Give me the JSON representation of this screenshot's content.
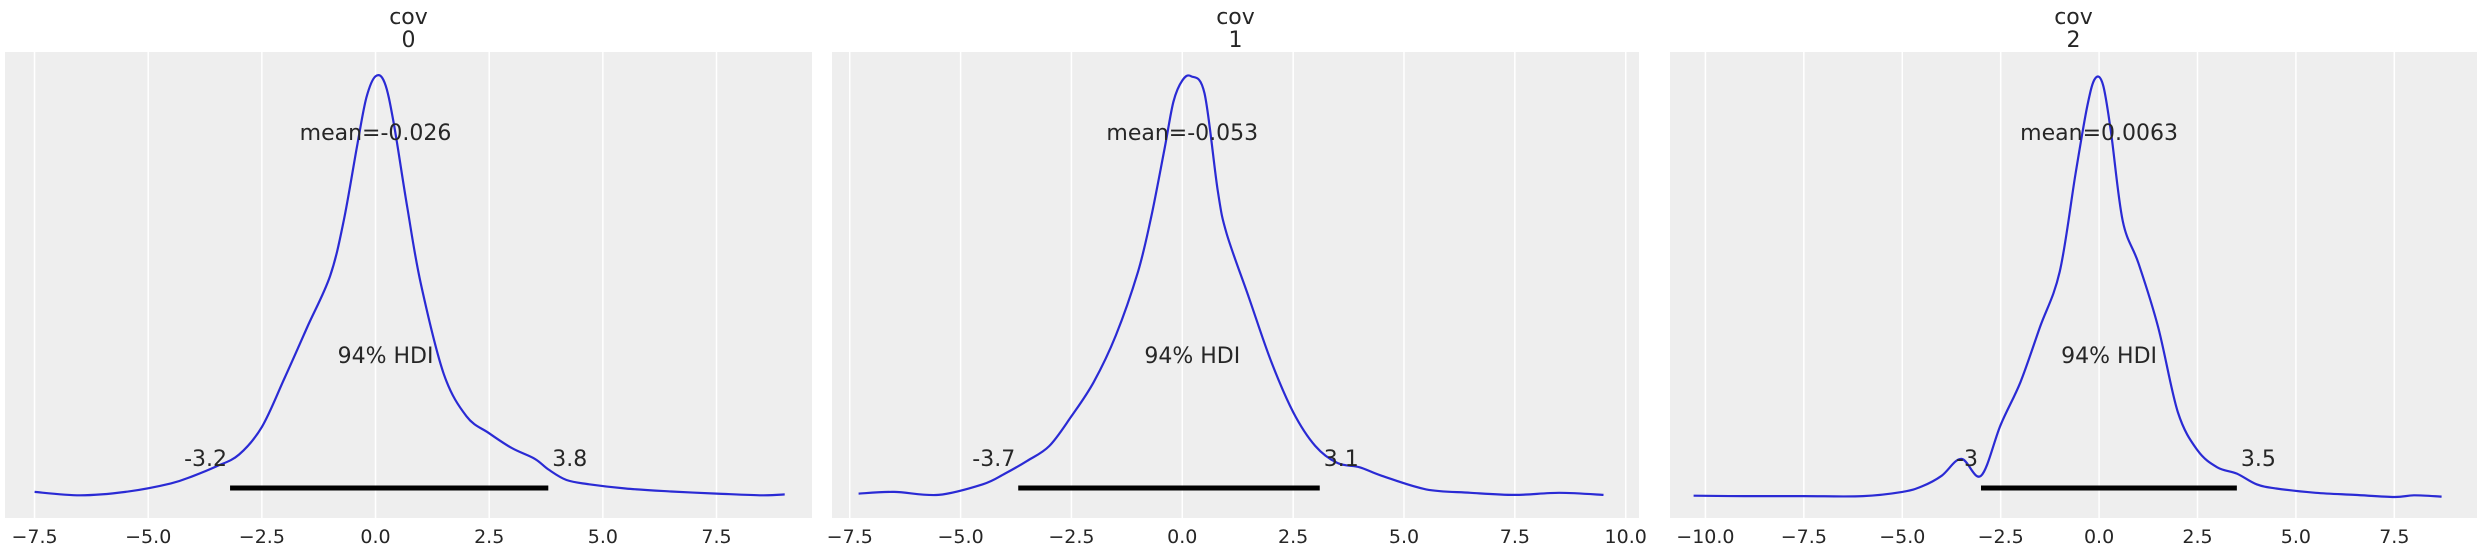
{
  "figure": {
    "background": "#ffffff",
    "panel_background": "#eeeeee",
    "grid_color": "#ffffff",
    "line_color": "#2a2ad4",
    "hdi_color": "#000000"
  },
  "chart_data": [
    {
      "type": "line",
      "title": "cov\n0",
      "title_lines": [
        "cov",
        "0"
      ],
      "xlabel": "",
      "ylabel": "",
      "xlim": [
        -8.15,
        9.6
      ],
      "xticks": [
        -7.5,
        -5.0,
        -2.5,
        0.0,
        2.5,
        5.0,
        7.5
      ],
      "xtick_labels": [
        "−7.5",
        "−5.0",
        "−2.5",
        "0.0",
        "2.5",
        "5.0",
        "7.5"
      ],
      "grid": true,
      "yticks_visible": false,
      "mean_label": "mean=-0.026",
      "hdi_label": "94% HDI",
      "hdi": [
        -3.2,
        3.8
      ],
      "hdi_labels": [
        "-3.2",
        "3.8"
      ],
      "series": [
        {
          "x": [
            -7.5,
            -6.5,
            -5.5,
            -4.5,
            -4.0,
            -3.5,
            -3.0,
            -2.5,
            -2.0,
            -1.5,
            -1.0,
            -0.7,
            -0.4,
            -0.2,
            0.0,
            0.2,
            0.4,
            0.7,
            1.0,
            1.5,
            2.0,
            2.5,
            3.0,
            3.5,
            3.8,
            4.2,
            4.7,
            5.5,
            6.5,
            7.5,
            8.5,
            9.0
          ],
          "y": [
            0.012,
            0.004,
            0.012,
            0.032,
            0.05,
            0.072,
            0.1,
            0.165,
            0.28,
            0.4,
            0.52,
            0.65,
            0.83,
            0.94,
            0.99,
            0.975,
            0.88,
            0.68,
            0.5,
            0.29,
            0.19,
            0.15,
            0.115,
            0.09,
            0.065,
            0.04,
            0.03,
            0.02,
            0.013,
            0.008,
            0.004,
            0.006
          ]
        }
      ]
    },
    {
      "type": "line",
      "title": "cov\n1",
      "title_lines": [
        "cov",
        "1"
      ],
      "xlabel": "",
      "ylabel": "",
      "xlim": [
        -7.9,
        10.3
      ],
      "xticks": [
        -7.5,
        -5.0,
        -2.5,
        0.0,
        2.5,
        5.0,
        7.5,
        10.0
      ],
      "xtick_labels": [
        "−7.5",
        "−5.0",
        "−2.5",
        "0.0",
        "2.5",
        "5.0",
        "7.5",
        "10.0"
      ],
      "grid": true,
      "yticks_visible": false,
      "mean_label": "mean=-0.053",
      "hdi_label": "94% HDI",
      "hdi": [
        -3.7,
        3.1
      ],
      "hdi_labels": [
        "-3.7",
        "3.1"
      ],
      "series": [
        {
          "x": [
            -7.3,
            -6.5,
            -5.5,
            -4.5,
            -4.0,
            -3.5,
            -3.0,
            -2.5,
            -2.0,
            -1.5,
            -1.0,
            -0.7,
            -0.4,
            -0.2,
            0.0,
            0.2,
            0.5,
            0.8,
            1.0,
            1.5,
            2.0,
            2.5,
            3.0,
            3.5,
            4.0,
            4.5,
            5.5,
            6.5,
            7.5,
            8.5,
            9.5
          ],
          "y": [
            0.008,
            0.012,
            0.005,
            0.03,
            0.055,
            0.085,
            0.12,
            0.19,
            0.27,
            0.38,
            0.53,
            0.66,
            0.82,
            0.93,
            0.98,
            0.99,
            0.95,
            0.72,
            0.62,
            0.47,
            0.32,
            0.2,
            0.12,
            0.08,
            0.07,
            0.05,
            0.018,
            0.01,
            0.005,
            0.01,
            0.005
          ]
        }
      ]
    },
    {
      "type": "line",
      "title": "cov\n2",
      "title_lines": [
        "cov",
        "2"
      ],
      "xlabel": "",
      "ylabel": "",
      "xlim": [
        -10.9,
        9.6
      ],
      "xticks": [
        -10.0,
        -7.5,
        -5.0,
        -2.5,
        0.0,
        2.5,
        5.0,
        7.5
      ],
      "xtick_labels": [
        "−10.0",
        "−7.5",
        "−5.0",
        "−2.5",
        "0.0",
        "2.5",
        "5.0",
        "7.5"
      ],
      "grid": true,
      "yticks_visible": false,
      "mean_label": "mean=0.0063",
      "hdi_label": "94% HDI",
      "hdi": [
        -3.0,
        3.5
      ],
      "hdi_labels": [
        "-3",
        "3.5"
      ],
      "series": [
        {
          "x": [
            -10.3,
            -9.0,
            -7.5,
            -6.0,
            -5.0,
            -4.5,
            -4.0,
            -3.5,
            -3.0,
            -2.5,
            -2.0,
            -1.5,
            -1.0,
            -0.6,
            -0.3,
            -0.1,
            0.1,
            0.3,
            0.6,
            1.0,
            1.5,
            2.0,
            2.5,
            3.0,
            3.5,
            4.0,
            4.5,
            5.5,
            6.5,
            7.5,
            8.0,
            8.7
          ],
          "y": [
            0.003,
            0.002,
            0.002,
            0.002,
            0.012,
            0.025,
            0.05,
            0.09,
            0.05,
            0.17,
            0.27,
            0.4,
            0.53,
            0.76,
            0.92,
            0.985,
            0.97,
            0.86,
            0.65,
            0.55,
            0.4,
            0.2,
            0.11,
            0.07,
            0.055,
            0.03,
            0.02,
            0.01,
            0.005,
            0.0,
            0.004,
            0.001
          ]
        }
      ]
    }
  ]
}
